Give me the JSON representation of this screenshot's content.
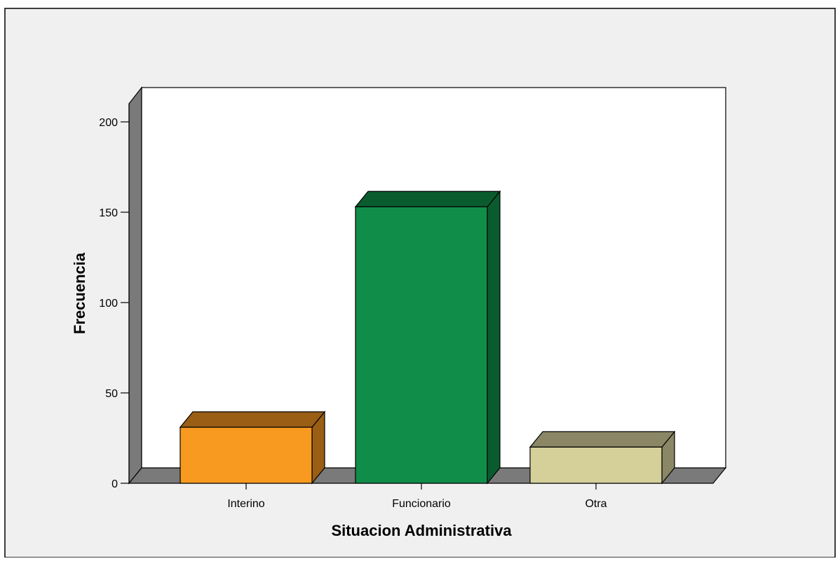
{
  "chart_data": {
    "type": "bar",
    "title": "",
    "xlabel": "Situacion Administrativa",
    "ylabel": "Frecuencia",
    "categories": [
      "Interino",
      "Funcionario",
      "Otra"
    ],
    "values": [
      31,
      153,
      20
    ],
    "ylim": [
      0,
      215
    ],
    "yticks": [
      0,
      50,
      100,
      150,
      200
    ],
    "bar_colors": [
      "#F89A1F",
      "#118D4A",
      "#D5D09A"
    ],
    "bar_top_colors": [
      "#9A5E14",
      "#0A5C2E",
      "#8B8766"
    ],
    "bar_side_colors": [
      "#9A5E14",
      "#0A5C2E",
      "#8B8766"
    ],
    "wall_color": "#7A7A7A",
    "background_color": "#F0F0F0",
    "plot_color": "#FFFFFF",
    "grid": false,
    "legend": "none"
  }
}
